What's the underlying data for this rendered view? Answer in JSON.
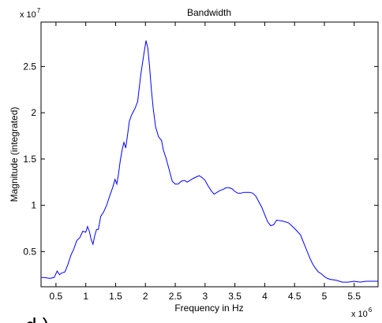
{
  "chart_data": {
    "type": "line",
    "title": "Bandwidth",
    "xlabel": "Frequency in Hz",
    "ylabel": "Magnitude (integrated)",
    "x_multiplier_label": "x 10",
    "x_multiplier_exponent": "6",
    "y_multiplier_label": "x 10",
    "y_multiplier_exponent": "7",
    "panel_label": "d.)",
    "xlim": [
      0.25,
      5.9
    ],
    "ylim": [
      0.12,
      2.98
    ],
    "x_ticks": [
      0.5,
      1,
      1.5,
      2,
      2.5,
      3,
      3.5,
      4,
      4.5,
      5,
      5.5
    ],
    "x_tick_labels": [
      "0.5",
      "1",
      "1.5",
      "2",
      "2.5",
      "3",
      "3.5",
      "4",
      "4.5",
      "5",
      "5.5"
    ],
    "y_ticks": [
      0.5,
      1,
      1.5,
      2,
      2.5
    ],
    "y_tick_labels": [
      "0.5",
      "1",
      "1.5",
      "2",
      "2.5"
    ],
    "grid": false,
    "line_color": "#0000ff",
    "series": [
      {
        "x": [
          0.25,
          0.3,
          0.4,
          0.47,
          0.52,
          0.56,
          0.6,
          0.65,
          0.7,
          0.75,
          0.8,
          0.85,
          0.9,
          0.95,
          1.0,
          1.03,
          1.06,
          1.09,
          1.12,
          1.15,
          1.18,
          1.21,
          1.25,
          1.3,
          1.35,
          1.4,
          1.45,
          1.49,
          1.52,
          1.55,
          1.58,
          1.61,
          1.64,
          1.67,
          1.7,
          1.73,
          1.77,
          1.82,
          1.87,
          1.92,
          1.97,
          2.01,
          2.04,
          2.07,
          2.1,
          2.13,
          2.17,
          2.22,
          2.27,
          2.3,
          2.35,
          2.4,
          2.45,
          2.5,
          2.55,
          2.6,
          2.65,
          2.7,
          2.8,
          2.9,
          2.95,
          3.0,
          3.05,
          3.1,
          3.15,
          3.2,
          3.25,
          3.3,
          3.35,
          3.4,
          3.45,
          3.5,
          3.55,
          3.6,
          3.65,
          3.7,
          3.75,
          3.8,
          3.85,
          3.9,
          3.95,
          4.0,
          4.05,
          4.1,
          4.15,
          4.2,
          4.3,
          4.4,
          4.5,
          4.6,
          4.65,
          4.7,
          4.75,
          4.8,
          4.85,
          4.9,
          4.95,
          5.0,
          5.05,
          5.1,
          5.2,
          5.3,
          5.4,
          5.5,
          5.6,
          5.7,
          5.8,
          5.9
        ],
        "y": [
          0.22,
          0.22,
          0.21,
          0.22,
          0.29,
          0.25,
          0.27,
          0.28,
          0.36,
          0.46,
          0.53,
          0.62,
          0.65,
          0.72,
          0.71,
          0.77,
          0.72,
          0.63,
          0.58,
          0.67,
          0.74,
          0.74,
          0.88,
          0.93,
          1.0,
          1.1,
          1.19,
          1.28,
          1.23,
          1.34,
          1.49,
          1.6,
          1.68,
          1.62,
          1.76,
          1.91,
          1.98,
          2.04,
          2.12,
          2.4,
          2.62,
          2.78,
          2.7,
          2.5,
          2.25,
          2.05,
          1.85,
          1.74,
          1.7,
          1.6,
          1.5,
          1.38,
          1.26,
          1.23,
          1.23,
          1.26,
          1.27,
          1.25,
          1.29,
          1.32,
          1.3,
          1.27,
          1.21,
          1.16,
          1.12,
          1.14,
          1.16,
          1.17,
          1.19,
          1.19,
          1.18,
          1.15,
          1.13,
          1.13,
          1.14,
          1.14,
          1.14,
          1.13,
          1.1,
          1.04,
          0.98,
          0.9,
          0.82,
          0.78,
          0.79,
          0.84,
          0.83,
          0.81,
          0.75,
          0.68,
          0.6,
          0.52,
          0.44,
          0.37,
          0.32,
          0.28,
          0.26,
          0.23,
          0.21,
          0.2,
          0.19,
          0.17,
          0.17,
          0.18,
          0.17,
          0.18,
          0.18,
          0.18
        ]
      }
    ]
  }
}
